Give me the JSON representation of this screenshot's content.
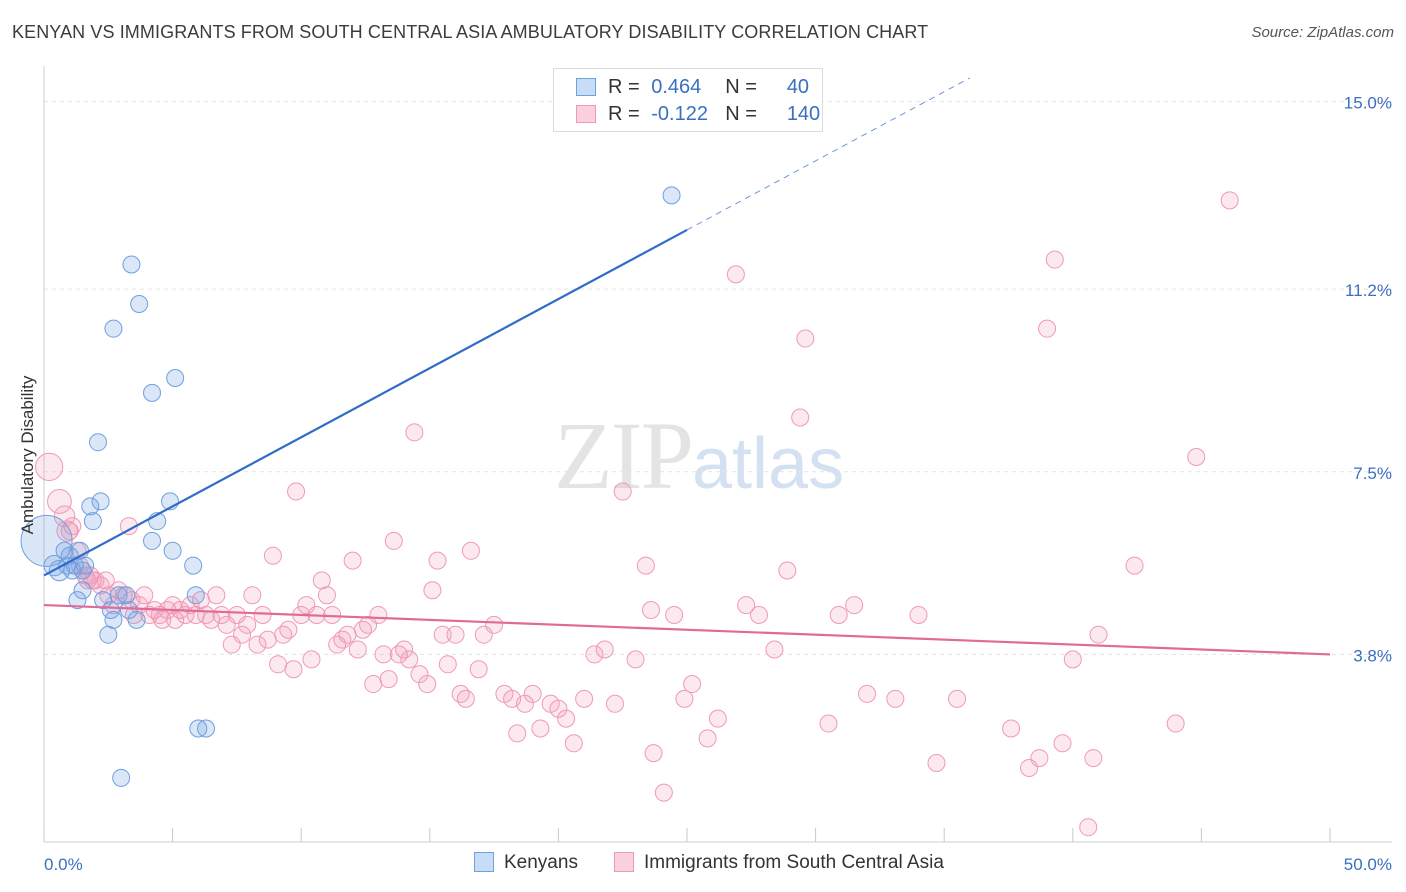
{
  "title": "KENYAN VS IMMIGRANTS FROM SOUTH CENTRAL ASIA AMBULATORY DISABILITY CORRELATION CHART",
  "source": "Source: ZipAtlas.com",
  "watermark": {
    "zip": "ZIP",
    "atlas": "atlas"
  },
  "legend": {
    "rows": [
      {
        "r_label": "R =",
        "r_value": "0.464",
        "n_label": "N =",
        "n_value": "40"
      },
      {
        "r_label": "R =",
        "r_value": "-0.122",
        "n_label": "N =",
        "n_value": "140"
      }
    ]
  },
  "colors": {
    "kenyans": "#6fa0e0",
    "kenyans_line": "#2f6cc9",
    "immigrants": "#f099b6",
    "immigrants_line": "#e06a98",
    "tick_label": "#3a6fc0"
  },
  "chart_data": {
    "type": "scatter",
    "xlabel": "",
    "ylabel": "Ambulatory Disability",
    "xlim": [
      0,
      50
    ],
    "ylim": [
      0,
      15.6
    ],
    "x_tick_labels": [
      "0.0%",
      "50.0%"
    ],
    "y_ticks": [
      3.8,
      7.5,
      11.2,
      15.0
    ],
    "y_tick_labels": [
      "3.8%",
      "7.5%",
      "11.2%",
      "15.0%"
    ],
    "legend_position": "bottom",
    "series": [
      {
        "name": "Kenyans",
        "r": 0.464,
        "n": 40,
        "trend": {
          "x0": 0,
          "y0": 5.4,
          "x1": 25,
          "y1": 12.4,
          "dashed_to_x": 36
        },
        "points": [
          [
            0.1,
            6.1,
            30
          ],
          [
            0.4,
            5.6,
            12
          ],
          [
            0.6,
            5.5,
            12
          ],
          [
            0.8,
            5.9,
            10
          ],
          [
            0.9,
            5.6,
            10
          ],
          [
            1.0,
            5.8,
            10
          ],
          [
            1.1,
            5.5,
            10
          ],
          [
            1.2,
            5.6,
            10
          ],
          [
            1.4,
            5.9,
            10
          ],
          [
            1.5,
            5.5,
            10
          ],
          [
            1.3,
            4.9,
            10
          ],
          [
            1.5,
            5.1,
            10
          ],
          [
            1.6,
            5.6,
            10
          ],
          [
            1.8,
            6.8,
            10
          ],
          [
            1.9,
            6.5,
            10
          ],
          [
            2.1,
            8.1,
            10
          ],
          [
            2.2,
            6.9,
            10
          ],
          [
            2.3,
            4.9,
            10
          ],
          [
            2.5,
            4.2,
            10
          ],
          [
            2.6,
            4.7,
            10
          ],
          [
            2.7,
            4.5,
            10
          ],
          [
            2.7,
            10.4,
            10
          ],
          [
            2.9,
            5.0,
            10
          ],
          [
            3.0,
            1.3,
            10
          ],
          [
            3.2,
            5.0,
            10
          ],
          [
            3.3,
            4.7,
            10
          ],
          [
            3.4,
            11.7,
            10
          ],
          [
            3.6,
            4.5,
            10
          ],
          [
            3.7,
            10.9,
            10
          ],
          [
            4.2,
            6.1,
            10
          ],
          [
            4.2,
            9.1,
            10
          ],
          [
            4.4,
            6.5,
            10
          ],
          [
            4.9,
            6.9,
            10
          ],
          [
            5.0,
            5.9,
            10
          ],
          [
            5.1,
            9.4,
            10
          ],
          [
            5.8,
            5.6,
            10
          ],
          [
            5.9,
            5.0,
            10
          ],
          [
            6.0,
            2.3,
            10
          ],
          [
            6.3,
            2.3,
            10
          ],
          [
            24.4,
            13.1,
            10
          ]
        ]
      },
      {
        "name": "Immigrants from South Central Asia",
        "r": -0.122,
        "n": 140,
        "trend": {
          "x0": 0,
          "y0": 4.8,
          "x1": 50,
          "y1": 3.8
        },
        "points": [
          [
            0.2,
            7.6,
            16
          ],
          [
            0.6,
            6.9,
            14
          ],
          [
            0.8,
            6.6,
            12
          ],
          [
            0.9,
            6.3,
            12
          ],
          [
            1.0,
            6.3,
            10
          ],
          [
            1.1,
            6.4,
            10
          ],
          [
            1.3,
            5.9,
            10
          ],
          [
            1.4,
            5.6,
            10
          ],
          [
            1.6,
            5.4,
            10
          ],
          [
            1.7,
            5.3,
            10
          ],
          [
            1.8,
            5.4,
            10
          ],
          [
            1.9,
            5.3,
            10
          ],
          [
            2.0,
            5.3,
            10
          ],
          [
            2.2,
            5.2,
            10
          ],
          [
            2.4,
            5.3,
            10
          ],
          [
            2.5,
            5.0,
            10
          ],
          [
            2.7,
            4.8,
            10
          ],
          [
            2.9,
            5.1,
            10
          ],
          [
            3.1,
            5.0,
            10
          ],
          [
            3.3,
            6.4,
            10
          ],
          [
            3.4,
            4.9,
            10
          ],
          [
            3.5,
            4.6,
            10
          ],
          [
            3.7,
            4.8,
            10
          ],
          [
            3.9,
            5.0,
            10
          ],
          [
            4.1,
            4.6,
            10
          ],
          [
            4.3,
            4.7,
            10
          ],
          [
            4.5,
            4.6,
            10
          ],
          [
            4.6,
            4.5,
            10
          ],
          [
            4.8,
            4.7,
            10
          ],
          [
            5.0,
            4.8,
            10
          ],
          [
            5.1,
            4.5,
            10
          ],
          [
            5.3,
            4.7,
            10
          ],
          [
            5.5,
            4.6,
            10
          ],
          [
            5.7,
            4.8,
            10
          ],
          [
            5.9,
            4.6,
            10
          ],
          [
            6.1,
            4.9,
            10
          ],
          [
            6.3,
            4.6,
            10
          ],
          [
            6.5,
            4.5,
            10
          ],
          [
            6.7,
            5.0,
            10
          ],
          [
            6.9,
            4.6,
            10
          ],
          [
            7.1,
            4.4,
            10
          ],
          [
            7.3,
            4.0,
            10
          ],
          [
            7.5,
            4.6,
            10
          ],
          [
            7.7,
            4.2,
            10
          ],
          [
            7.9,
            4.4,
            10
          ],
          [
            8.1,
            5.0,
            10
          ],
          [
            8.3,
            4.0,
            10
          ],
          [
            8.5,
            4.6,
            10
          ],
          [
            8.7,
            4.1,
            10
          ],
          [
            8.9,
            5.8,
            10
          ],
          [
            9.1,
            3.6,
            10
          ],
          [
            9.3,
            4.2,
            10
          ],
          [
            9.5,
            4.3,
            10
          ],
          [
            9.7,
            3.5,
            10
          ],
          [
            9.8,
            7.1,
            10
          ],
          [
            10.0,
            4.6,
            10
          ],
          [
            10.2,
            4.8,
            10
          ],
          [
            10.4,
            3.7,
            10
          ],
          [
            10.6,
            4.6,
            10
          ],
          [
            10.8,
            5.3,
            10
          ],
          [
            11.0,
            5.0,
            10
          ],
          [
            11.2,
            4.6,
            10
          ],
          [
            11.4,
            4.0,
            10
          ],
          [
            11.6,
            4.1,
            10
          ],
          [
            11.8,
            4.2,
            10
          ],
          [
            12.0,
            5.7,
            10
          ],
          [
            12.2,
            3.9,
            10
          ],
          [
            12.4,
            4.3,
            10
          ],
          [
            12.6,
            4.4,
            10
          ],
          [
            12.8,
            3.2,
            10
          ],
          [
            13.0,
            4.6,
            10
          ],
          [
            13.2,
            3.8,
            10
          ],
          [
            13.4,
            3.3,
            10
          ],
          [
            13.6,
            6.1,
            10
          ],
          [
            13.8,
            3.8,
            10
          ],
          [
            14.0,
            3.9,
            10
          ],
          [
            14.2,
            3.7,
            10
          ],
          [
            14.4,
            8.3,
            10
          ],
          [
            14.6,
            3.4,
            10
          ],
          [
            14.9,
            3.2,
            10
          ],
          [
            15.1,
            5.1,
            10
          ],
          [
            15.3,
            5.7,
            10
          ],
          [
            15.5,
            4.2,
            10
          ],
          [
            15.7,
            3.6,
            10
          ],
          [
            16.0,
            4.2,
            10
          ],
          [
            16.2,
            3.0,
            10
          ],
          [
            16.4,
            2.9,
            10
          ],
          [
            16.6,
            5.9,
            10
          ],
          [
            16.9,
            3.5,
            10
          ],
          [
            17.1,
            4.2,
            10
          ],
          [
            17.5,
            4.4,
            10
          ],
          [
            17.9,
            3.0,
            10
          ],
          [
            18.2,
            2.9,
            10
          ],
          [
            18.4,
            2.2,
            10
          ],
          [
            18.7,
            2.8,
            10
          ],
          [
            19.0,
            3.0,
            10
          ],
          [
            19.3,
            2.3,
            10
          ],
          [
            19.7,
            2.8,
            10
          ],
          [
            20.0,
            2.7,
            10
          ],
          [
            20.3,
            2.5,
            10
          ],
          [
            20.6,
            2.0,
            10
          ],
          [
            21.0,
            2.9,
            10
          ],
          [
            21.4,
            3.8,
            10
          ],
          [
            21.8,
            3.9,
            10
          ],
          [
            22.2,
            2.8,
            10
          ],
          [
            22.5,
            7.1,
            10
          ],
          [
            23.0,
            3.7,
            10
          ],
          [
            23.4,
            5.6,
            10
          ],
          [
            23.7,
            1.8,
            10
          ],
          [
            24.1,
            1.0,
            10
          ],
          [
            24.5,
            4.6,
            10
          ],
          [
            24.9,
            2.9,
            10
          ],
          [
            25.2,
            3.2,
            10
          ],
          [
            25.8,
            2.1,
            10
          ],
          [
            26.2,
            2.5,
            10
          ],
          [
            26.9,
            11.5,
            10
          ],
          [
            27.3,
            4.8,
            10
          ],
          [
            27.8,
            4.6,
            10
          ],
          [
            28.4,
            3.9,
            10
          ],
          [
            28.9,
            5.5,
            10
          ],
          [
            29.4,
            8.6,
            10
          ],
          [
            29.6,
            10.2,
            10
          ],
          [
            30.5,
            2.4,
            10
          ],
          [
            30.9,
            4.6,
            10
          ],
          [
            31.5,
            4.8,
            10
          ],
          [
            32.0,
            3.0,
            10
          ],
          [
            33.1,
            2.9,
            10
          ],
          [
            34.0,
            4.6,
            10
          ],
          [
            34.7,
            1.6,
            10
          ],
          [
            35.5,
            2.9,
            10
          ],
          [
            37.6,
            2.3,
            10
          ],
          [
            38.3,
            1.5,
            10
          ],
          [
            38.7,
            1.7,
            10
          ],
          [
            39.0,
            10.4,
            10
          ],
          [
            39.3,
            11.8,
            10
          ],
          [
            39.6,
            2.0,
            10
          ],
          [
            40.0,
            3.7,
            10
          ],
          [
            40.6,
            0.3,
            10
          ],
          [
            40.8,
            1.7,
            10
          ],
          [
            41.0,
            4.2,
            10
          ],
          [
            42.4,
            5.6,
            10
          ],
          [
            44.0,
            2.4,
            10
          ],
          [
            44.8,
            7.8,
            10
          ],
          [
            46.1,
            13.0,
            10
          ],
          [
            23.6,
            4.7,
            10
          ]
        ]
      }
    ]
  }
}
